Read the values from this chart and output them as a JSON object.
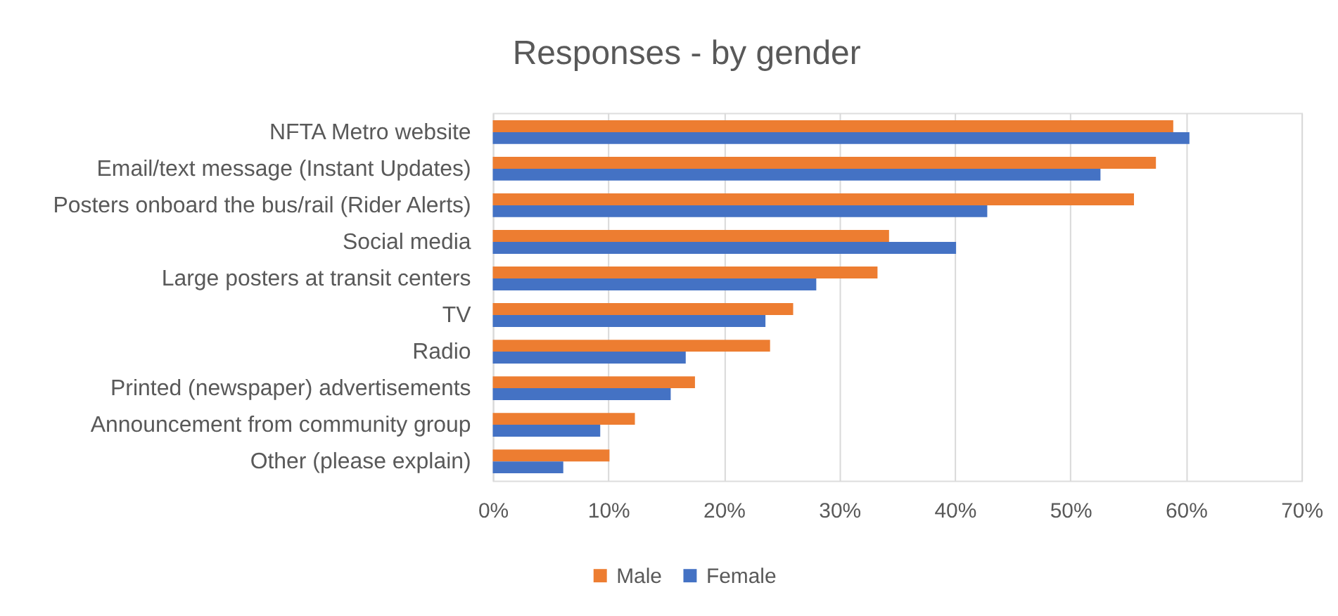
{
  "chart_data": {
    "type": "bar",
    "orientation": "horizontal",
    "title": "Responses - by gender",
    "categories": [
      "NFTA Metro website",
      "Email/text message (Instant Updates)",
      "Posters onboard the bus/rail (Rider Alerts)",
      "Social media",
      "Large posters at transit centers",
      "TV",
      "Radio",
      "Printed (newspaper) advertisements",
      "Announcement from community group",
      "Other (please explain)"
    ],
    "series": [
      {
        "name": "Male",
        "color": "#ed7d31",
        "values": [
          58.9,
          57.4,
          55.5,
          34.3,
          33.3,
          26.0,
          24.0,
          17.5,
          12.3,
          10.1
        ]
      },
      {
        "name": "Female",
        "color": "#4472c4",
        "values": [
          60.3,
          52.6,
          42.8,
          40.1,
          28.0,
          23.6,
          16.7,
          15.4,
          9.3,
          6.1
        ]
      }
    ],
    "xlim": [
      0,
      70
    ],
    "xticks": [
      {
        "value": 0,
        "label": "0%"
      },
      {
        "value": 10,
        "label": "10%"
      },
      {
        "value": 20,
        "label": "20%"
      },
      {
        "value": 30,
        "label": "30%"
      },
      {
        "value": 40,
        "label": "40%"
      },
      {
        "value": 50,
        "label": "50%"
      },
      {
        "value": 60,
        "label": "60%"
      },
      {
        "value": 70,
        "label": "70%"
      }
    ],
    "grid": "x",
    "legend": "bottom"
  }
}
